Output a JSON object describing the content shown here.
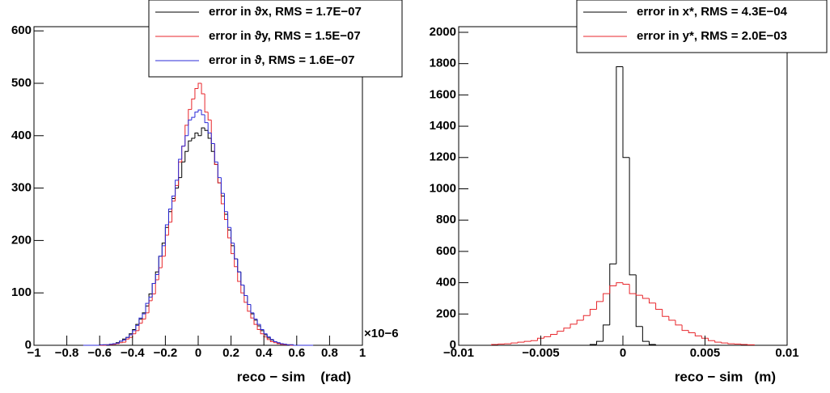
{
  "chart_data": [
    {
      "type": "histogram",
      "x_label": "reco − sim    (rad)",
      "x_exponent_label": "×10−6",
      "xlim": [
        -1,
        1
      ],
      "ylim": [
        0,
        608
      ],
      "xticks": [
        {
          "value": -1,
          "label": "−1"
        },
        {
          "value": -0.8,
          "label": "−0.8"
        },
        {
          "value": -0.6,
          "label": "−0.6"
        },
        {
          "value": -0.4,
          "label": "−0.4"
        },
        {
          "value": -0.2,
          "label": "−0.2"
        },
        0,
        0.2,
        0.4,
        0.6,
        0.8,
        1
      ],
      "yticks": [
        0,
        100,
        200,
        300,
        400,
        500,
        600
      ],
      "legend": "upper right",
      "bins": [
        -0.7,
        -0.68,
        -0.66,
        -0.64,
        -0.62,
        -0.6,
        -0.58,
        -0.56,
        -0.54,
        -0.52,
        -0.5,
        -0.48,
        -0.46,
        -0.44,
        -0.42,
        -0.4,
        -0.38,
        -0.36,
        -0.34,
        -0.32,
        -0.3,
        -0.28,
        -0.26,
        -0.24,
        -0.22,
        -0.2,
        -0.18,
        -0.16,
        -0.14,
        -0.12,
        -0.1,
        -0.08,
        -0.06,
        -0.04,
        -0.02,
        0,
        0.02,
        0.04,
        0.06,
        0.08,
        0.1,
        0.12,
        0.14,
        0.16,
        0.18,
        0.2,
        0.22,
        0.24,
        0.26,
        0.28,
        0.3,
        0.32,
        0.34,
        0.36,
        0.38,
        0.4,
        0.42,
        0.44,
        0.46,
        0.48,
        0.5,
        0.52,
        0.54,
        0.56,
        0.58,
        0.6,
        0.62,
        0.64,
        0.66,
        0.68,
        0.7
      ],
      "series": [
        {
          "name": "error in ϑx, RMS = 1.7E−07",
          "color": "#000000",
          "values": [
            0,
            0,
            0,
            0,
            0,
            0,
            1,
            1,
            2,
            3,
            5,
            8,
            12,
            15,
            22,
            30,
            40,
            50,
            62,
            75,
            98,
            118,
            140,
            170,
            195,
            225,
            255,
            280,
            300,
            320,
            350,
            370,
            390,
            395,
            405,
            400,
            415,
            410,
            395,
            370,
            345,
            310,
            285,
            250,
            220,
            190,
            165,
            140,
            115,
            95,
            78,
            60,
            48,
            37,
            28,
            20,
            14,
            10,
            7,
            4,
            3,
            2,
            1,
            1,
            0,
            0,
            0,
            0,
            0,
            0
          ]
        },
        {
          "name": "error in ϑy, RMS = 1.5E−07",
          "color": "#e8262b",
          "values": [
            0,
            0,
            0,
            0,
            0,
            0,
            0,
            1,
            1,
            2,
            3,
            5,
            6,
            12,
            15,
            22,
            28,
            42,
            50,
            62,
            85,
            98,
            125,
            148,
            170,
            210,
            235,
            275,
            305,
            350,
            380,
            420,
            450,
            470,
            490,
            500,
            480,
            445,
            430,
            385,
            345,
            310,
            270,
            240,
            205,
            175,
            150,
            122,
            100,
            82,
            65,
            52,
            40,
            30,
            22,
            16,
            11,
            7,
            5,
            3,
            2,
            1,
            1,
            0,
            0,
            0,
            0,
            0,
            0,
            0
          ]
        },
        {
          "name": "error in ϑ, RMS = 1.6E−07",
          "color": "#2b2bd8",
          "values": [
            0,
            0,
            0,
            0,
            0,
            1,
            1,
            1,
            2,
            3,
            4,
            8,
            10,
            15,
            20,
            28,
            38,
            52,
            60,
            80,
            92,
            118,
            135,
            170,
            190,
            230,
            260,
            285,
            315,
            355,
            380,
            400,
            430,
            435,
            445,
            449,
            440,
            425,
            405,
            385,
            350,
            320,
            290,
            255,
            225,
            195,
            165,
            140,
            115,
            95,
            78,
            62,
            50,
            40,
            30,
            22,
            16,
            11,
            7,
            5,
            3,
            2,
            1,
            1,
            0,
            0,
            0,
            0,
            0,
            0
          ]
        }
      ]
    },
    {
      "type": "histogram",
      "x_label": "reco − sim   (m)",
      "xlim": [
        -0.01,
        0.01
      ],
      "ylim": [
        0,
        2036
      ],
      "xticks": [
        {
          "value": -0.01,
          "label": "−0.01"
        },
        {
          "value": -0.005,
          "label": "−0.005"
        },
        0,
        0.005,
        0.01
      ],
      "yticks": [
        0,
        200,
        400,
        600,
        800,
        1000,
        1200,
        1400,
        1600,
        1800,
        2000
      ],
      "legend": "upper right",
      "bins": [
        -0.008,
        -0.0076,
        -0.0072,
        -0.0068,
        -0.0064,
        -0.006,
        -0.0056,
        -0.0052,
        -0.0048,
        -0.0044,
        -0.004,
        -0.0036,
        -0.0032,
        -0.0028,
        -0.0024,
        -0.002,
        -0.0016,
        -0.0012,
        -0.0008,
        -0.0004,
        0,
        0.0004,
        0.0008,
        0.0012,
        0.0016,
        0.002,
        0.0024,
        0.0028,
        0.0032,
        0.0036,
        0.004,
        0.0044,
        0.0048,
        0.0052,
        0.0056,
        0.006,
        0.0064,
        0.0068,
        0.0072,
        0.0076,
        0.008
      ],
      "series": [
        {
          "name": "error in x*, RMS = 4.3E−04",
          "color": "#000000",
          "values": [
            0,
            0,
            0,
            0,
            0,
            0,
            0,
            0,
            0,
            0,
            0,
            0,
            0,
            0,
            0,
            5,
            25,
            130,
            520,
            1780,
            1200,
            450,
            120,
            25,
            5,
            0,
            0,
            0,
            0,
            0,
            0,
            0,
            0,
            0,
            0,
            0,
            0,
            0,
            0,
            0
          ]
        },
        {
          "name": "error in y*, RMS = 2.0E−03",
          "color": "#e8262b",
          "values": [
            5,
            8,
            10,
            15,
            20,
            25,
            30,
            45,
            55,
            70,
            90,
            110,
            135,
            160,
            190,
            230,
            280,
            330,
            380,
            400,
            390,
            330,
            320,
            300,
            270,
            230,
            185,
            160,
            130,
            95,
            80,
            60,
            45,
            30,
            20,
            15,
            10,
            8,
            5,
            3
          ]
        }
      ]
    }
  ]
}
